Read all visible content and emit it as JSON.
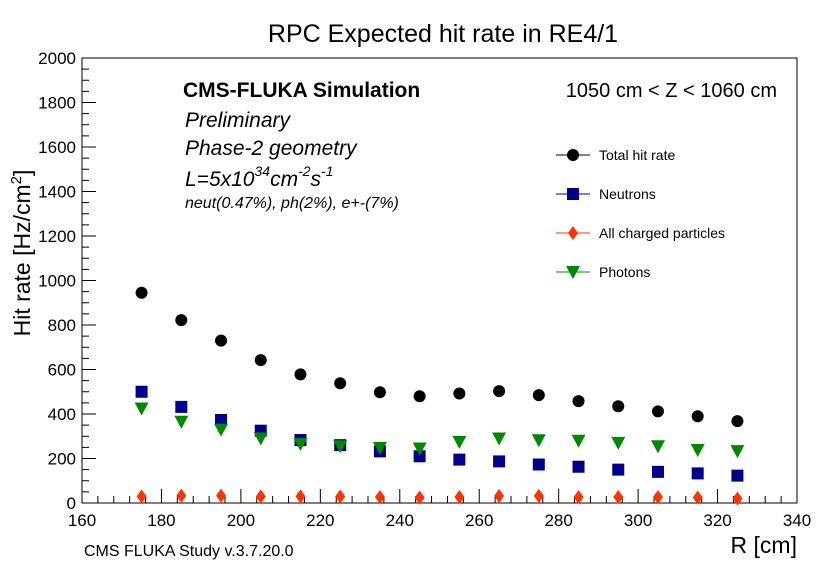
{
  "chart_data": {
    "type": "scatter",
    "title": "RPC Expected hit rate in RE4/1",
    "xlabel": "R [cm]",
    "ylabel": "Hit rate [Hz/cm²]",
    "ylabel_main": "Hit rate [Hz/cm",
    "ylabel_sup": "2",
    "ylabel_close": "]",
    "xlim": [
      160,
      340
    ],
    "ylim": [
      0,
      2000
    ],
    "x_ticks": [
      "160",
      "180",
      "200",
      "220",
      "240",
      "260",
      "280",
      "300",
      "320",
      "340"
    ],
    "y_ticks": [
      "0",
      "200",
      "400",
      "600",
      "800",
      "1000",
      "1200",
      "1400",
      "1600",
      "1800",
      "2000"
    ],
    "legend_position": "top-right",
    "x": [
      175,
      185,
      195,
      205,
      215,
      225,
      235,
      245,
      255,
      265,
      275,
      285,
      295,
      305,
      315,
      325
    ],
    "series": [
      {
        "name": "Total hit rate",
        "marker": "circle",
        "color": "#000000",
        "values": [
          945,
          822,
          730,
          642,
          578,
          538,
          498,
          480,
          492,
          503,
          485,
          458,
          435,
          412,
          390,
          368
        ]
      },
      {
        "name": "Neutrons",
        "marker": "square",
        "color": "#00008b",
        "values": [
          500,
          432,
          373,
          325,
          283,
          260,
          232,
          210,
          195,
          187,
          173,
          163,
          150,
          140,
          133,
          123
        ]
      },
      {
        "name": "All charged particles",
        "marker": "diamond",
        "color": "#ff3300",
        "values": [
          30,
          33,
          33,
          30,
          30,
          30,
          27,
          25,
          27,
          32,
          32,
          27,
          27,
          27,
          25,
          20
        ]
      },
      {
        "name": "Photons",
        "marker": "triangle-down",
        "color": "#008800",
        "values": [
          425,
          365,
          330,
          290,
          265,
          255,
          248,
          245,
          275,
          290,
          282,
          280,
          270,
          255,
          238,
          233
        ]
      }
    ]
  },
  "annotations": {
    "sim_title": "CMS-FLUKA Simulation",
    "preliminary": "Preliminary",
    "geometry": "Phase-2 geometry",
    "lumi_prefix": "L=5x10",
    "lumi_exp1": "34",
    "lumi_unit_cm": "cm",
    "lumi_exp2": "-2",
    "lumi_unit_s": "s",
    "lumi_exp3": "-1",
    "fractions": "neut(0.47%), ph(2%), e+-(7%)",
    "z_range": "1050 cm < Z < 1060 cm",
    "footer": "CMS FLUKA Study v.3.7.20.0"
  }
}
